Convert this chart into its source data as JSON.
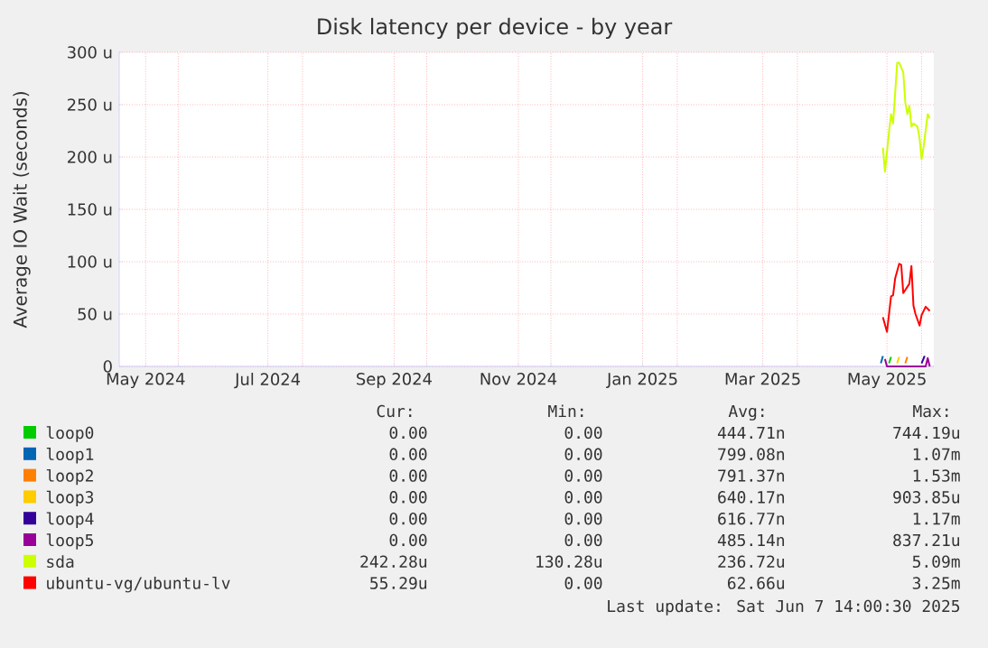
{
  "chart_data": {
    "type": "line",
    "title": "Disk latency per device - by year",
    "ylabel": "Average IO Wait (seconds)",
    "xlim": [
      "2024-05-03",
      "2025-06-07"
    ],
    "xticks": [
      {
        "value": "2024-05-16",
        "label": "May 2024"
      },
      {
        "value": "2024-06-01",
        "label": null
      },
      {
        "value": "2024-07-15",
        "label": "Jul 2024"
      },
      {
        "value": "2024-08-01",
        "label": null
      },
      {
        "value": "2024-09-15",
        "label": "Sep 2024"
      },
      {
        "value": "2024-10-01",
        "label": null
      },
      {
        "value": "2024-11-15",
        "label": "Nov 2024"
      },
      {
        "value": "2024-12-01",
        "label": null
      },
      {
        "value": "2025-01-15",
        "label": "Jan 2025"
      },
      {
        "value": "2025-02-01",
        "label": null
      },
      {
        "value": "2025-03-15",
        "label": "Mar 2025"
      },
      {
        "value": "2025-04-01",
        "label": null
      },
      {
        "value": "2025-05-15",
        "label": "May 2025"
      },
      {
        "value": "2025-06-01",
        "label": null
      }
    ],
    "ylim": [
      0,
      300
    ],
    "yticks": [
      0,
      {
        "value": 50,
        "label": "50 u"
      },
      {
        "value": 100,
        "label": "100 u"
      },
      {
        "value": 150,
        "label": "150 u"
      },
      {
        "value": 200,
        "label": "200 u"
      },
      {
        "value": 250,
        "label": "250 u"
      },
      {
        "value": 300,
        "label": "300 u"
      }
    ],
    "grid": true,
    "legend": "bottom",
    "series": [
      {
        "name": "loop0",
        "color": "#00cc00",
        "x": [
          "2025-05-16",
          "2025-05-17"
        ],
        "values": [
          3,
          9
        ]
      },
      {
        "name": "loop1",
        "color": "#0066b3",
        "x": [
          "2025-05-12",
          "2025-05-13"
        ],
        "values": [
          3,
          10
        ]
      },
      {
        "name": "loop2",
        "color": "#ff8000",
        "x": [
          "2025-05-24",
          "2025-05-25"
        ],
        "values": [
          3,
          9
        ]
      },
      {
        "name": "loop3",
        "color": "#ffcc00",
        "x": [
          "2025-05-20",
          "2025-05-21"
        ],
        "values": [
          3,
          9
        ]
      },
      {
        "name": "loop4",
        "color": "#330099",
        "x": [
          "2025-06-01",
          "2025-06-02T12:00"
        ],
        "values": [
          3,
          10
        ]
      },
      {
        "name": "loop5",
        "color": "#990099",
        "x": [
          "2025-05-14",
          "2025-05-15",
          "2025-06-03",
          "2025-06-04",
          "2025-06-05"
        ],
        "values": [
          7,
          0,
          0,
          8,
          0
        ]
      },
      {
        "name": "sda",
        "color": "#ccff00",
        "x": [
          "2025-05-13",
          "2025-05-14",
          "2025-05-16",
          "2025-05-17",
          "2025-05-18",
          "2025-05-20",
          "2025-05-21",
          "2025-05-23",
          "2025-05-24",
          "2025-05-25",
          "2025-05-26",
          "2025-05-27",
          "2025-05-28",
          "2025-05-30",
          "2025-05-31",
          "2025-06-01",
          "2025-06-02",
          "2025-06-04",
          "2025-06-05"
        ],
        "values": [
          209,
          186,
          224,
          241,
          232,
          290,
          290,
          281,
          252,
          241,
          249,
          229,
          232,
          229,
          218,
          198,
          210,
          241,
          237
        ]
      },
      {
        "name": "ubuntu-vg/ubuntu-lv",
        "color": "#ff0000",
        "x": [
          "2025-05-13",
          "2025-05-15",
          "2025-05-17",
          "2025-05-18",
          "2025-05-19",
          "2025-05-21",
          "2025-05-22",
          "2025-05-23",
          "2025-05-24",
          "2025-05-26",
          "2025-05-27",
          "2025-05-28",
          "2025-05-29",
          "2025-05-31",
          "2025-06-01",
          "2025-06-03",
          "2025-06-05"
        ],
        "values": [
          47,
          33,
          67,
          68,
          84,
          98,
          97,
          70,
          73,
          79,
          96,
          58,
          50,
          39,
          49,
          57,
          53
        ]
      }
    ],
    "annotations": [
      "Cur:",
      "Min:",
      "Avg:",
      "Max:",
      "0.00",
      "0.00",
      "444.71n",
      "744.19u",
      "0.00",
      "0.00",
      "799.08n",
      "1.07m",
      "0.00",
      "0.00",
      "791.37n",
      "1.53m",
      "0.00",
      "0.00",
      "640.17n",
      "903.85u",
      "0.00",
      "0.00",
      "616.77n",
      "1.17m",
      "0.00",
      "0.00",
      "485.14n",
      "837.21u",
      "242.28u",
      "130.28u",
      "236.72u",
      "5.09m",
      "55.29u",
      "0.00",
      "62.66u",
      "3.25m",
      "Last update: Sat Jun  7 14:00:30 2025"
    ]
  }
}
